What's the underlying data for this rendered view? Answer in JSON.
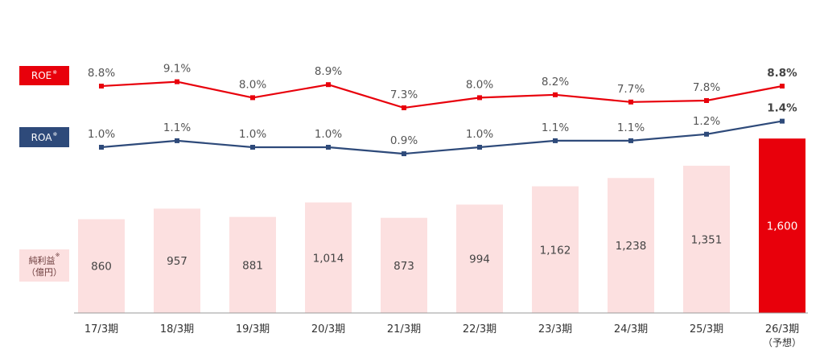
{
  "legend": {
    "roe_label": "ROE",
    "roa_label": "ROA",
    "net_income_label": "純利益",
    "net_income_unit": "（億円）",
    "note_mark": "※"
  },
  "chart_data": {
    "type": "bar",
    "categories": [
      "17/3期",
      "18/3期",
      "19/3期",
      "20/3期",
      "21/3期",
      "22/3期",
      "23/3期",
      "24/3期",
      "25/3期",
      "26/3期"
    ],
    "category_notes": [
      "",
      "",
      "",
      "",
      "",
      "",
      "",
      "",
      "",
      "（予想）"
    ],
    "series": [
      {
        "name": "純利益",
        "kind": "bar",
        "values": [
          860,
          957,
          881,
          1014,
          873,
          994,
          1162,
          1238,
          1351,
          1600
        ],
        "labels": [
          "860",
          "957",
          "881",
          "1,014",
          "873",
          "994",
          "1,162",
          "1,238",
          "1,351",
          "1,600"
        ],
        "color": "#fce0e0",
        "highlight_color": "#e8000b",
        "highlight_index": 9
      },
      {
        "name": "ROA",
        "kind": "line",
        "values": [
          1.0,
          1.1,
          1.0,
          1.0,
          0.9,
          1.0,
          1.1,
          1.1,
          1.2,
          1.4
        ],
        "labels": [
          "1.0%",
          "1.1%",
          "1.0%",
          "1.0%",
          "0.9%",
          "1.0%",
          "1.1%",
          "1.1%",
          "1.2%",
          "1.4%"
        ],
        "color": "#2e4a7a"
      },
      {
        "name": "ROE",
        "kind": "line",
        "values": [
          8.8,
          9.1,
          8.0,
          8.9,
          7.3,
          8.0,
          8.2,
          7.7,
          7.8,
          8.8
        ],
        "labels": [
          "8.8%",
          "9.1%",
          "8.0%",
          "8.9%",
          "7.3%",
          "8.0%",
          "8.2%",
          "7.7%",
          "7.8%",
          "8.8%"
        ],
        "color": "#e8000b"
      }
    ],
    "grid": false,
    "legend_position": "left"
  }
}
